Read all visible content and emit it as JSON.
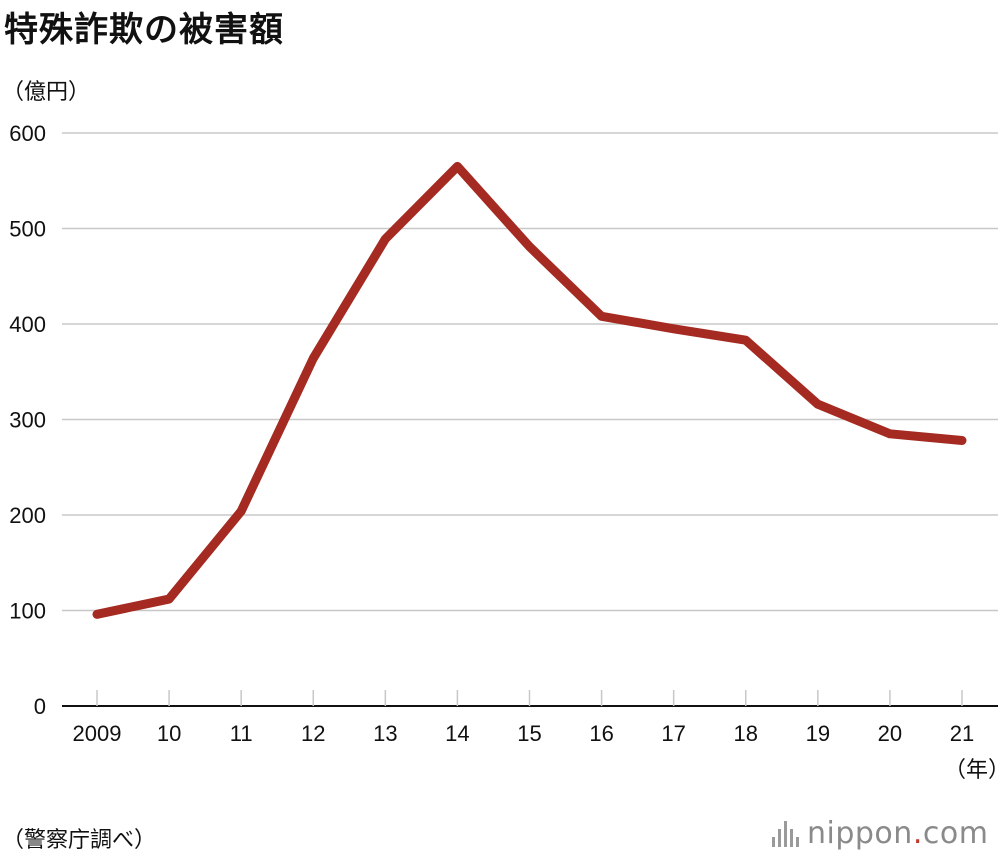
{
  "chart_data": {
    "type": "line",
    "title": "特殊詐欺の被害額",
    "ylabel": "（億円）",
    "xlabel": "（年）",
    "categories": [
      "2009",
      "10",
      "11",
      "12",
      "13",
      "14",
      "15",
      "16",
      "17",
      "18",
      "19",
      "20",
      "21"
    ],
    "series": [
      {
        "values": [
          96,
          112,
          204,
          364,
          489,
          565,
          481,
          408,
          395,
          383,
          316,
          285,
          278
        ]
      }
    ],
    "ylim": [
      0,
      600
    ],
    "yticks": [
      "0",
      "100",
      "200",
      "300",
      "400",
      "500",
      "600"
    ],
    "grid": true,
    "line_color": "#a52a21",
    "source": "（警察庁調べ）"
  },
  "logo": {
    "brand": "nippon",
    "dot": ".",
    "tld": "com"
  }
}
